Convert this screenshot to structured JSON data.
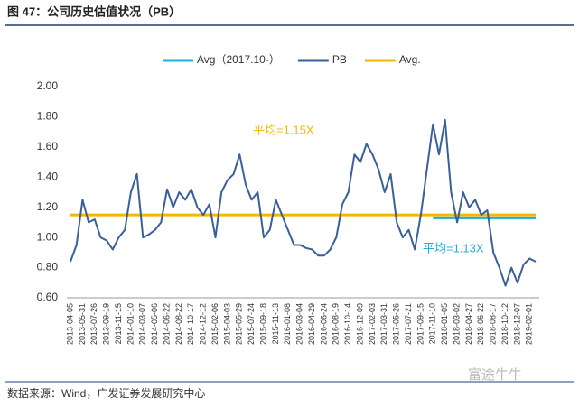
{
  "chart_data": {
    "type": "line",
    "title": "图 47：公司历史估值状况（PB）",
    "source": "数据来源：Wind，广发证券发展研究中心",
    "watermark": "富途牛牛",
    "annotations": [
      {
        "text": "平均=1.15X",
        "color": "#f5b800"
      },
      {
        "text": "平均=1.13X",
        "color": "#1ab0e0"
      }
    ],
    "categories": [
      "2013-04-05",
      null,
      "2013-05-31",
      null,
      "2013-07-26",
      null,
      "2013-09-19",
      null,
      "2013-11-15",
      null,
      "2014-01-10",
      null,
      "2014-03-07",
      null,
      "2014-05-06",
      null,
      "2014-06-22",
      null,
      "2014-08-22",
      null,
      "2014-10-17",
      null,
      "2014-12-12",
      null,
      "2015-02-06",
      null,
      "2015-04-03",
      null,
      "2015-05-29",
      null,
      "2015-07-24",
      null,
      "2015-09-18",
      null,
      "2015-11-13",
      null,
      "2016-01-08",
      null,
      "2016-03-04",
      null,
      "2016-04-29",
      null,
      "2016-06-24",
      null,
      "2016-08-19",
      null,
      "2016-10-14",
      null,
      "2016-12-09",
      null,
      "2017-02-03",
      null,
      "2017-03-31",
      null,
      "2017-05-26",
      null,
      "2017-07-21",
      null,
      "2017-09-15",
      null,
      "2017-11-10",
      null,
      "2018-01-05",
      null,
      "2018-03-02",
      null,
      "2018-04-27",
      null,
      "2018-06-22",
      null,
      "2018-08-17",
      null,
      "2018-10-12",
      null,
      "2018-12-07",
      null,
      "2019-02-01",
      null
    ],
    "series": [
      {
        "name": "Avg（2017.10-）",
        "color": "#1ab0e0",
        "width": 3,
        "values": [
          null,
          null,
          null,
          null,
          null,
          null,
          null,
          null,
          null,
          null,
          null,
          null,
          null,
          null,
          null,
          null,
          null,
          null,
          null,
          null,
          null,
          null,
          null,
          null,
          null,
          null,
          null,
          null,
          null,
          null,
          null,
          null,
          null,
          null,
          null,
          null,
          null,
          null,
          null,
          null,
          null,
          null,
          null,
          null,
          null,
          null,
          null,
          null,
          null,
          null,
          null,
          null,
          null,
          null,
          null,
          null,
          null,
          null,
          null,
          null,
          1.13,
          1.13,
          1.13,
          1.13,
          1.13,
          1.13,
          1.13,
          1.13,
          1.13,
          1.13,
          1.13,
          1.13,
          1.13,
          1.13,
          1.13,
          1.13,
          1.13,
          1.13
        ]
      },
      {
        "name": "PB",
        "color": "#3a5f9a",
        "width": 2,
        "values": [
          0.84,
          0.95,
          1.25,
          1.1,
          1.12,
          1.0,
          0.98,
          0.92,
          1.0,
          1.05,
          1.3,
          1.42,
          1.0,
          1.02,
          1.05,
          1.1,
          1.32,
          1.2,
          1.3,
          1.25,
          1.32,
          1.2,
          1.15,
          1.22,
          1.0,
          1.3,
          1.38,
          1.42,
          1.55,
          1.35,
          1.25,
          1.3,
          1.0,
          1.05,
          1.25,
          1.15,
          1.05,
          0.95,
          0.95,
          0.93,
          0.92,
          0.88,
          0.88,
          0.92,
          1.0,
          1.22,
          1.3,
          1.55,
          1.5,
          1.62,
          1.55,
          1.45,
          1.3,
          1.42,
          1.1,
          1.0,
          1.05,
          0.92,
          1.15,
          1.45,
          1.75,
          1.55,
          1.78,
          1.3,
          1.1,
          1.3,
          1.2,
          1.25,
          1.15,
          1.18,
          0.9,
          0.8,
          0.68,
          0.8,
          0.7,
          0.82,
          0.86,
          0.84
        ]
      },
      {
        "name": "Avg.",
        "color": "#f5b800",
        "width": 3,
        "values": [
          1.15,
          1.15,
          1.15,
          1.15,
          1.15,
          1.15,
          1.15,
          1.15,
          1.15,
          1.15,
          1.15,
          1.15,
          1.15,
          1.15,
          1.15,
          1.15,
          1.15,
          1.15,
          1.15,
          1.15,
          1.15,
          1.15,
          1.15,
          1.15,
          1.15,
          1.15,
          1.15,
          1.15,
          1.15,
          1.15,
          1.15,
          1.15,
          1.15,
          1.15,
          1.15,
          1.15,
          1.15,
          1.15,
          1.15,
          1.15,
          1.15,
          1.15,
          1.15,
          1.15,
          1.15,
          1.15,
          1.15,
          1.15,
          1.15,
          1.15,
          1.15,
          1.15,
          1.15,
          1.15,
          1.15,
          1.15,
          1.15,
          1.15,
          1.15,
          1.15,
          1.15,
          1.15,
          1.15,
          1.15,
          1.15,
          1.15,
          1.15,
          1.15,
          1.15,
          1.15,
          1.15,
          1.15,
          1.15,
          1.15,
          1.15,
          1.15,
          1.15,
          1.15
        ]
      }
    ],
    "ylim": [
      0.6,
      2.0
    ],
    "yticks": [
      {
        "value": 0.6,
        "label": "0.60"
      },
      {
        "value": 0.8,
        "label": "0.80"
      },
      {
        "value": 1.0,
        "label": "1.00"
      },
      {
        "value": 1.2,
        "label": "1.20"
      },
      {
        "value": 1.4,
        "label": "1.40"
      },
      {
        "value": 1.6,
        "label": "1.60"
      },
      {
        "value": 1.8,
        "label": "1.80"
      },
      {
        "value": 2.0,
        "label": "2.00"
      }
    ],
    "grid": false,
    "legend": "top"
  }
}
